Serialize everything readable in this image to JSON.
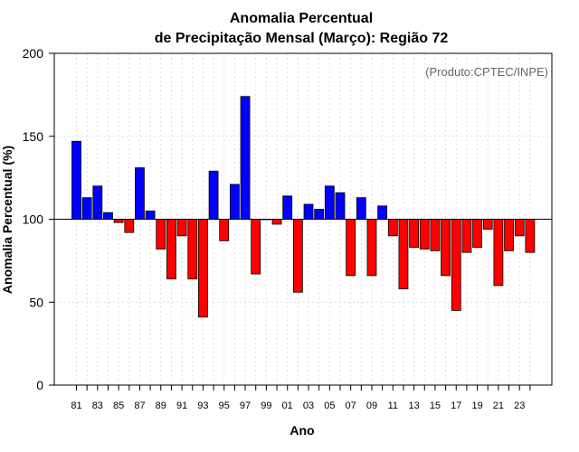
{
  "chart_data": {
    "type": "bar",
    "title": [
      "Anomalia Percentual",
      "de Precipitação Mensal (Março): Região 72"
    ],
    "xlabel": "Ano",
    "ylabel": "Anomalia Percentual (%)",
    "credit": "(Produto:CPTEC/INPE)",
    "ylim": [
      0,
      200
    ],
    "yticks": [
      0,
      50,
      100,
      150,
      200
    ],
    "baseline": 100,
    "grid": true,
    "colors": {
      "above": "#0000ff",
      "below": "#ff0000"
    },
    "categories": [
      "81",
      "82",
      "83",
      "84",
      "85",
      "86",
      "87",
      "88",
      "89",
      "90",
      "91",
      "92",
      "93",
      "94",
      "95",
      "96",
      "97",
      "98",
      "99",
      "00",
      "01",
      "02",
      "03",
      "04",
      "05",
      "06",
      "07",
      "08",
      "09",
      "10",
      "11",
      "12",
      "13",
      "14",
      "15",
      "16",
      "17",
      "18",
      "19",
      "20",
      "21",
      "22",
      "23",
      "24"
    ],
    "tick_labels": [
      "81",
      "83",
      "85",
      "87",
      "89",
      "91",
      "93",
      "95",
      "97",
      "99",
      "01",
      "03",
      "05",
      "07",
      "09",
      "11",
      "13",
      "15",
      "17",
      "19",
      "21",
      "23"
    ],
    "values": [
      147,
      113,
      120,
      104,
      98,
      92,
      131,
      105,
      82,
      64,
      90,
      64,
      41,
      129,
      87,
      121,
      174,
      67,
      100,
      97,
      114,
      56,
      109,
      106,
      120,
      116,
      66,
      113,
      66,
      108,
      90,
      58,
      83,
      82,
      81,
      66,
      45,
      80,
      83,
      94,
      60,
      81,
      90,
      80
    ]
  }
}
